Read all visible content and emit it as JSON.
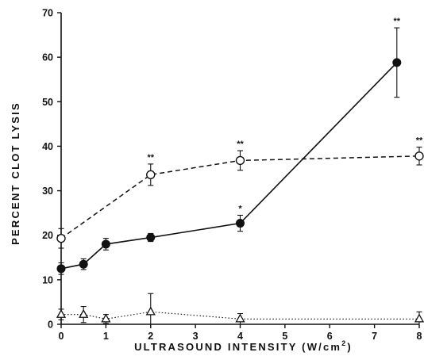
{
  "chart_data": {
    "type": "line",
    "xlabel": "ULTRASOUND INTENSITY (W/cm",
    "xlabel_superscript": "2",
    "xlabel_suffix": ")",
    "ylabel": "PERCENT CLOT LYSIS",
    "xlim": [
      0,
      8
    ],
    "ylim": [
      0,
      70
    ],
    "x_ticks": [
      0,
      1,
      2,
      3,
      4,
      5,
      6,
      7,
      8
    ],
    "y_ticks": [
      0,
      10,
      20,
      30,
      40,
      50,
      60,
      70
    ],
    "grid": false,
    "series": [
      {
        "marker": "filled-circle",
        "line": "solid",
        "points": [
          {
            "x": 0,
            "y": 12.5,
            "err": 1.3
          },
          {
            "x": 0.5,
            "y": 13.5,
            "err": 1.2
          },
          {
            "x": 1,
            "y": 18,
            "err": 1.3
          },
          {
            "x": 2,
            "y": 19.5,
            "err": 0.9
          },
          {
            "x": 4,
            "y": 22.7,
            "err": 1.8,
            "sig": "*"
          },
          {
            "x": 7.5,
            "y": 58.8,
            "err": 7.8,
            "sig": "**"
          }
        ]
      },
      {
        "marker": "open-circle",
        "line": "dashed",
        "points": [
          {
            "x": 0,
            "y": 19.3,
            "err": 2.2
          },
          {
            "x": 2,
            "y": 33.6,
            "err": 2.4,
            "sig": "**"
          },
          {
            "x": 4,
            "y": 36.8,
            "err": 2.2,
            "sig": "**"
          },
          {
            "x": 8,
            "y": 37.8,
            "err": 2.0,
            "sig": "**"
          }
        ]
      },
      {
        "marker": "open-triangle",
        "line": "dotted",
        "points": [
          {
            "x": 0,
            "y": 2.2,
            "err": 1.2
          },
          {
            "x": 0.5,
            "y": 2.2,
            "err": 1.8
          },
          {
            "x": 1,
            "y": 1.2,
            "err": 1.0
          },
          {
            "x": 2,
            "y": 2.8,
            "err": 4.1
          },
          {
            "x": 4,
            "y": 1.2,
            "err": 1.2
          },
          {
            "x": 8,
            "y": 1.2,
            "err": 1.6
          }
        ]
      }
    ]
  }
}
